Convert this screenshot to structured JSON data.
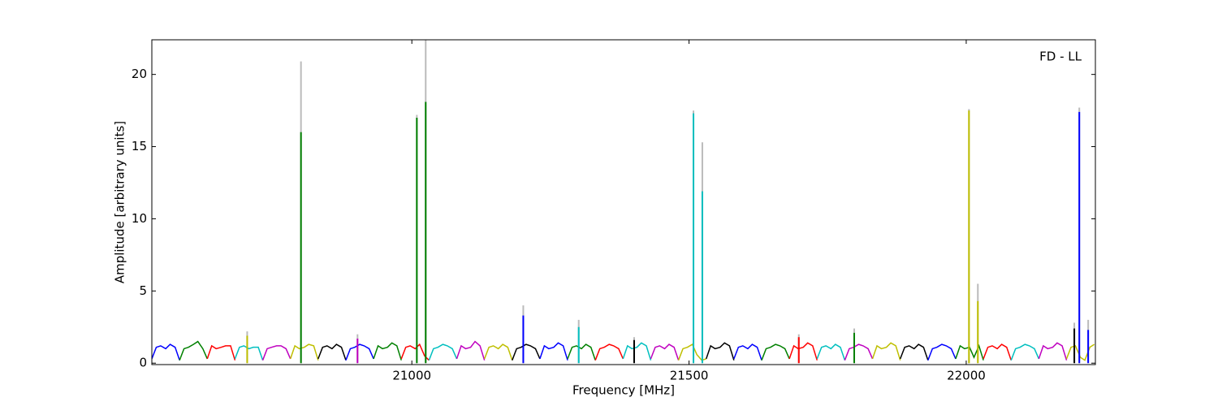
{
  "chart_data": {
    "type": "spectrum",
    "annotation": "FD - LL",
    "xlabel": "Frequency [MHz]",
    "ylabel": "Amplitude [arbitrary units]",
    "xlim": [
      20531,
      22233
    ],
    "ylim": [
      -0.1,
      22.4
    ],
    "xticks": [
      21000,
      21500,
      22000
    ],
    "yticks": [
      0,
      5,
      10,
      15,
      20
    ],
    "series": [
      {
        "color": "#0000ff",
        "x": [
          20531,
          20539,
          20547,
          20556,
          20564,
          20573,
          20581
        ],
        "values": [
          0.3,
          1.1,
          1.2,
          1.0,
          1.3,
          1.1,
          0.2
        ]
      },
      {
        "color": "#008000",
        "x": [
          20581,
          20589,
          20597,
          20606,
          20614,
          20623,
          20631
        ],
        "values": [
          0.2,
          1.0,
          1.1,
          1.3,
          1.5,
          1.0,
          0.3
        ]
      },
      {
        "color": "#ff0000",
        "x": [
          20631,
          20639,
          20647,
          20656,
          20664,
          20673,
          20681
        ],
        "values": [
          0.3,
          1.2,
          1.0,
          1.1,
          1.2,
          1.2,
          0.2
        ]
      },
      {
        "color": "#00bfbf",
        "x": [
          20681,
          20689,
          20697,
          20706,
          20714,
          20723,
          20731
        ],
        "values": [
          0.3,
          1.1,
          1.2,
          1.0,
          1.1,
          1.1,
          0.2
        ]
      },
      {
        "color": "#bf00bf",
        "x": [
          20731,
          20739,
          20747,
          20756,
          20764,
          20773,
          20781
        ],
        "values": [
          0.2,
          1.0,
          1.1,
          1.2,
          1.2,
          1.0,
          0.3
        ]
      },
      {
        "color": "#bfbf00",
        "x": [
          20781,
          20789,
          20797,
          20806,
          20814,
          20823,
          20831
        ],
        "values": [
          0.3,
          1.2,
          1.0,
          1.1,
          1.3,
          1.2,
          0.2
        ]
      },
      {
        "color": "#000000",
        "x": [
          20831,
          20839,
          20847,
          20856,
          20864,
          20873,
          20881
        ],
        "values": [
          0.3,
          1.1,
          1.2,
          1.0,
          1.3,
          1.1,
          0.2
        ]
      },
      {
        "color": "#0000ff",
        "x": [
          20881,
          20889,
          20897,
          20906,
          20914,
          20923,
          20931
        ],
        "values": [
          0.2,
          1.0,
          1.1,
          1.3,
          1.2,
          1.0,
          0.3
        ]
      },
      {
        "color": "#008000",
        "x": [
          20931,
          20939,
          20947,
          20956,
          20964,
          20973,
          20981
        ],
        "values": [
          0.3,
          1.2,
          1.0,
          1.1,
          1.4,
          1.2,
          0.2
        ]
      },
      {
        "color": "#ff0000",
        "x": [
          20981,
          20989,
          20997,
          21006,
          21014,
          21023,
          21031
        ],
        "values": [
          0.3,
          1.1,
          1.2,
          1.0,
          1.3,
          0.5,
          0.2
        ]
      },
      {
        "color": "#00bfbf",
        "x": [
          21031,
          21039,
          21047,
          21056,
          21064,
          21073,
          21081
        ],
        "values": [
          0.2,
          1.0,
          1.1,
          1.3,
          1.2,
          1.0,
          0.3
        ]
      },
      {
        "color": "#bf00bf",
        "x": [
          21081,
          21089,
          21097,
          21106,
          21114,
          21123,
          21131
        ],
        "values": [
          0.3,
          1.2,
          1.0,
          1.1,
          1.5,
          1.2,
          0.2
        ]
      },
      {
        "color": "#bfbf00",
        "x": [
          21131,
          21139,
          21147,
          21156,
          21164,
          21173,
          21181
        ],
        "values": [
          0.3,
          1.1,
          1.2,
          1.0,
          1.3,
          1.1,
          0.2
        ]
      },
      {
        "color": "#000000",
        "x": [
          21181,
          21189,
          21197,
          21206,
          21214,
          21223,
          21231
        ],
        "values": [
          0.2,
          1.0,
          1.1,
          1.3,
          1.2,
          1.0,
          0.3
        ]
      },
      {
        "color": "#0000ff",
        "x": [
          21231,
          21239,
          21247,
          21256,
          21264,
          21273,
          21281
        ],
        "values": [
          0.3,
          1.2,
          1.0,
          1.1,
          1.4,
          1.2,
          0.2
        ]
      },
      {
        "color": "#008000",
        "x": [
          21281,
          21289,
          21297,
          21306,
          21314,
          21323,
          21331
        ],
        "values": [
          0.3,
          1.1,
          1.2,
          1.0,
          1.3,
          1.1,
          0.2
        ]
      },
      {
        "color": "#ff0000",
        "x": [
          21331,
          21339,
          21347,
          21356,
          21364,
          21373,
          21381
        ],
        "values": [
          0.2,
          1.0,
          1.1,
          1.3,
          1.2,
          1.0,
          0.3
        ]
      },
      {
        "color": "#00bfbf",
        "x": [
          21381,
          21389,
          21397,
          21406,
          21414,
          21423,
          21431
        ],
        "values": [
          0.3,
          1.2,
          1.0,
          1.1,
          1.4,
          1.2,
          0.2
        ]
      },
      {
        "color": "#bf00bf",
        "x": [
          21431,
          21439,
          21447,
          21456,
          21464,
          21473,
          21481
        ],
        "values": [
          0.3,
          1.1,
          1.2,
          1.0,
          1.3,
          1.1,
          0.2
        ]
      },
      {
        "color": "#bfbf00",
        "x": [
          21481,
          21489,
          21497,
          21506,
          21514,
          21523,
          21531
        ],
        "values": [
          0.2,
          1.0,
          1.1,
          1.3,
          0.6,
          0.2,
          0.3
        ]
      },
      {
        "color": "#000000",
        "x": [
          21531,
          21539,
          21547,
          21556,
          21564,
          21573,
          21581
        ],
        "values": [
          0.3,
          1.2,
          1.0,
          1.1,
          1.4,
          1.2,
          0.2
        ]
      },
      {
        "color": "#0000ff",
        "x": [
          21581,
          21589,
          21597,
          21606,
          21614,
          21623,
          21631
        ],
        "values": [
          0.3,
          1.1,
          1.2,
          1.0,
          1.3,
          1.1,
          0.2
        ]
      },
      {
        "color": "#008000",
        "x": [
          21631,
          21639,
          21647,
          21656,
          21664,
          21673,
          21681
        ],
        "values": [
          0.2,
          1.0,
          1.1,
          1.3,
          1.2,
          1.0,
          0.3
        ]
      },
      {
        "color": "#ff0000",
        "x": [
          21681,
          21689,
          21697,
          21706,
          21714,
          21723,
          21731
        ],
        "values": [
          0.3,
          1.2,
          1.0,
          1.1,
          1.4,
          1.2,
          0.2
        ]
      },
      {
        "color": "#00bfbf",
        "x": [
          21731,
          21739,
          21747,
          21756,
          21764,
          21773,
          21781
        ],
        "values": [
          0.3,
          1.1,
          1.2,
          1.0,
          1.3,
          1.1,
          0.2
        ]
      },
      {
        "color": "#bf00bf",
        "x": [
          21781,
          21789,
          21797,
          21806,
          21814,
          21823,
          21831
        ],
        "values": [
          0.2,
          1.0,
          1.1,
          1.3,
          1.2,
          1.0,
          0.3
        ]
      },
      {
        "color": "#bfbf00",
        "x": [
          21831,
          21839,
          21847,
          21856,
          21864,
          21873,
          21881
        ],
        "values": [
          0.3,
          1.2,
          1.0,
          1.1,
          1.4,
          1.2,
          0.2
        ]
      },
      {
        "color": "#000000",
        "x": [
          21881,
          21889,
          21897,
          21906,
          21914,
          21923,
          21931
        ],
        "values": [
          0.3,
          1.1,
          1.2,
          1.0,
          1.3,
          1.1,
          0.2
        ]
      },
      {
        "color": "#0000ff",
        "x": [
          21931,
          21939,
          21947,
          21956,
          21964,
          21973,
          21981
        ],
        "values": [
          0.2,
          1.0,
          1.1,
          1.3,
          1.2,
          1.0,
          0.3
        ]
      },
      {
        "color": "#008000",
        "x": [
          21981,
          21989,
          21997,
          22006,
          22014,
          22023,
          22031
        ],
        "values": [
          0.3,
          1.2,
          1.0,
          1.1,
          0.4,
          1.2,
          0.2
        ]
      },
      {
        "color": "#ff0000",
        "x": [
          22031,
          22039,
          22047,
          22056,
          22064,
          22073,
          22081
        ],
        "values": [
          0.3,
          1.1,
          1.2,
          1.0,
          1.3,
          1.1,
          0.2
        ]
      },
      {
        "color": "#00bfbf",
        "x": [
          22081,
          22089,
          22097,
          22106,
          22114,
          22123,
          22131
        ],
        "values": [
          0.2,
          1.0,
          1.1,
          1.3,
          1.2,
          1.0,
          0.3
        ]
      },
      {
        "color": "#bf00bf",
        "x": [
          22131,
          22139,
          22147,
          22156,
          22164,
          22173,
          22181
        ],
        "values": [
          0.3,
          1.2,
          1.0,
          1.1,
          1.4,
          1.2,
          0.2
        ]
      },
      {
        "color": "#bfbf00",
        "x": [
          22181,
          22189,
          22197,
          22206,
          22214,
          22223,
          22231
        ],
        "values": [
          0.3,
          1.1,
          1.2,
          0.4,
          0.2,
          1.1,
          1.3
        ]
      }
    ],
    "spike_series": [
      {
        "color": "#bbbbbb",
        "x": [
          20703,
          20800,
          20902,
          21009,
          21025,
          21201,
          21301,
          21401,
          21508,
          21524,
          21698,
          21798,
          22005,
          22021,
          22195,
          22204,
          22220
        ],
        "values": [
          2.2,
          20.9,
          2.0,
          17.2,
          22.4,
          4.0,
          3.0,
          1.8,
          17.5,
          15.3,
          2.0,
          2.4,
          17.6,
          5.5,
          2.8,
          17.7,
          3.0
        ]
      },
      {
        "color": "#008000",
        "x": [
          20800,
          21009,
          21025,
          21798
        ],
        "values": [
          16.0,
          17.0,
          18.1,
          2.1
        ]
      },
      {
        "color": "#0000ff",
        "x": [
          21201,
          22204,
          22220
        ],
        "values": [
          3.3,
          17.4,
          2.3
        ]
      },
      {
        "color": "#00bfbf",
        "x": [
          21301,
          21508,
          21524
        ],
        "values": [
          2.5,
          17.3,
          11.9
        ]
      },
      {
        "color": "#bfbf00",
        "x": [
          20703,
          22005,
          22021
        ],
        "values": [
          1.9,
          17.5,
          4.3
        ]
      },
      {
        "color": "#bf00bf",
        "x": [
          20902
        ],
        "values": [
          1.7
        ]
      },
      {
        "color": "#000000",
        "x": [
          21401,
          22195
        ],
        "values": [
          1.6,
          2.4
        ]
      },
      {
        "color": "#ff0000",
        "x": [
          21698
        ],
        "values": [
          1.8
        ]
      }
    ]
  }
}
